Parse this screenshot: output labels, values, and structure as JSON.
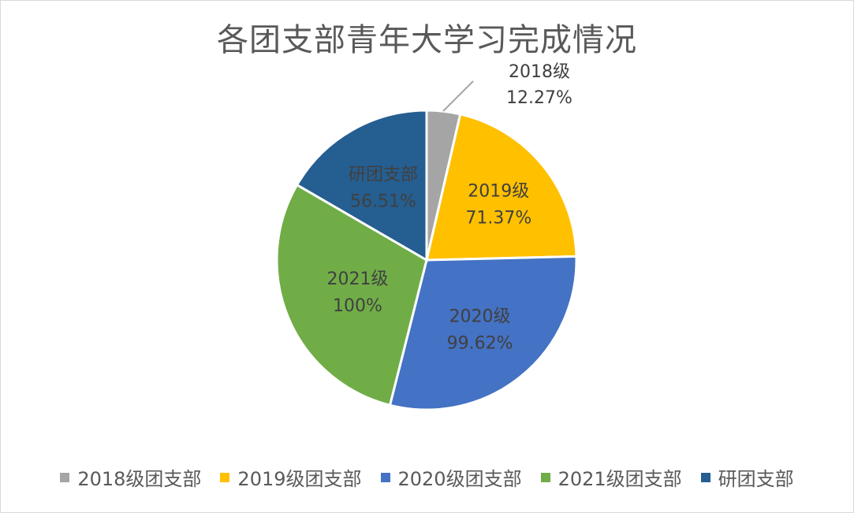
{
  "chart_data": {
    "type": "pie",
    "title": "各团支部青年大学习完成情况",
    "categories": [
      "2018级团支部",
      "2019级团支部",
      "2020级团支部",
      "2021级团支部",
      "研团支部"
    ],
    "values": [
      12.27,
      71.37,
      99.62,
      100,
      56.51
    ],
    "colors": [
      "#a5a5a5",
      "#ffc000",
      "#4472c4",
      "#70ad47",
      "#255e91"
    ],
    "labels": [
      {
        "name": "2018级",
        "value": "12.27%"
      },
      {
        "name": "2019级",
        "value": "71.37%"
      },
      {
        "name": "2020级",
        "value": "99.62%"
      },
      {
        "name": "2021级",
        "value": "100%"
      },
      {
        "name": "研团支部",
        "value": "56.51%"
      }
    ],
    "legend": [
      "2018级团支部",
      "2019级团支部",
      "2020级团支部",
      "2021级团支部",
      "研团支部"
    ],
    "legend_position": "bottom"
  }
}
